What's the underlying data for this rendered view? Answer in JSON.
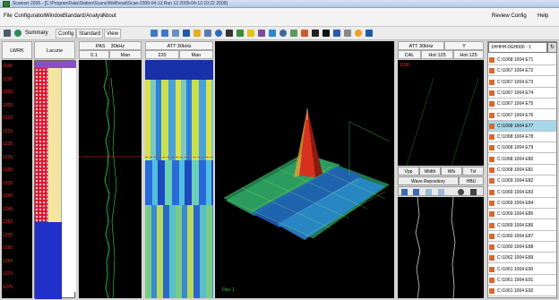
{
  "window": {
    "title": "Scanner 2005 - [C:\\ProgramData\\Station\\Scans\\Wellhead\\Scan-2009-04-13 Run 13 2009-04-13 10:22 2009]",
    "config_label": "Review Config",
    "help_label": "Help"
  },
  "menu": {
    "items": [
      "File",
      "Configuration",
      "Window",
      "Standard/Analyst",
      "About"
    ]
  },
  "toolbar": {
    "summary_label": "Summary",
    "config_label": "Config",
    "standard_label": "Standard",
    "view_label": "View"
  },
  "tracks": {
    "hdr_a": "LWRK",
    "hdr_b": "Lacune",
    "depths": [
      "1190",
      "1195",
      "1200",
      "1205",
      "1210",
      "1215",
      "1220",
      "1225",
      "1230",
      "1235",
      "1240",
      "1245",
      "1250",
      "1255",
      "1260",
      "1265",
      "1270",
      "1275"
    ]
  },
  "curve_panel": {
    "title": "PAS",
    "title2": "30kHz",
    "sub_a": "0.1",
    "sub_b": "Man"
  },
  "attn_panel": {
    "title": "ATT 30kHz",
    "sub_a": "220",
    "sub_b": "Man"
  },
  "right_panel": {
    "title": "ATT 30kHz",
    "title2": "Y",
    "sub_a": "CAL",
    "sub_b": "Hot 125",
    "sub_c": "Hot 125",
    "depth": "1190",
    "btns": [
      "Vpp",
      "Width",
      "Wfx",
      "Tvl"
    ],
    "wave_label": "Wave Repository",
    "wave_btn": "HBU"
  },
  "list": {
    "dropdown": "1HHHH-0GH000 - 1",
    "items": [
      "C:\\1068 1004 E71",
      "C:\\1067 1004 E72",
      "C:\\1067 1004 E73",
      "C:\\1067 1004 E74",
      "C:\\1067 1004 E75",
      "C:\\1067 1004 E76",
      "C:\\1068 1004 E77",
      "C:\\1068 1004 E78",
      "C:\\1068 1004 E79",
      "C:\\1068 1004 E80",
      "C:\\1068 1004 E81",
      "C:\\1069 1004 E82",
      "C:\\1069 1004 E83",
      "C:\\1069 1004 E84",
      "C:\\1069 1004 E85",
      "C:\\1069 1004 E86",
      "C:\\1060 1004 E87",
      "C:\\1060 1004 E88",
      "C:\\1062 1004 E89",
      "C:\\1061 1004 E90",
      "C:\\1061 1004 E91",
      "C:\\1061 1004 E92"
    ],
    "selected": 6
  },
  "surface": {
    "label": "Dev. 1"
  }
}
